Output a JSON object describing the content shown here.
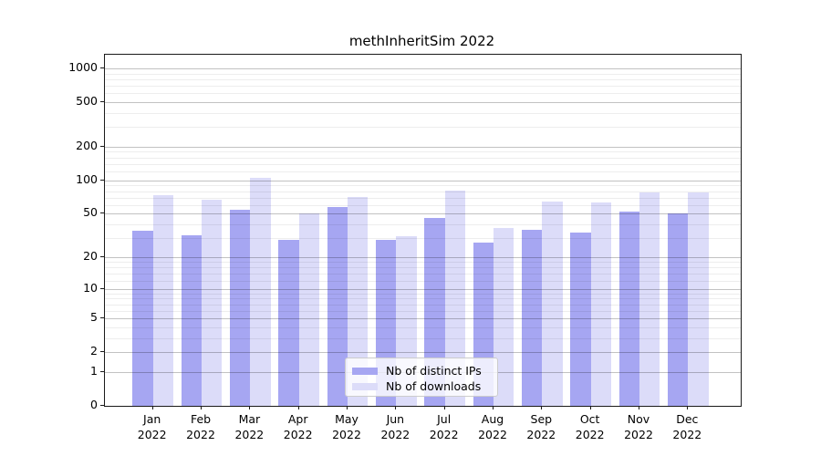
{
  "chart_data": {
    "type": "bar",
    "title": "methInheritSim 2022",
    "y_scale": "log1p",
    "ylim": [
      0,
      1320
    ],
    "grid": true,
    "legend_position": "lower center",
    "categories": [
      "Jan",
      "Feb",
      "Mar",
      "Apr",
      "May",
      "Jun",
      "Jul",
      "Aug",
      "Sep",
      "Oct",
      "Nov",
      "Dec"
    ],
    "x_year": "2022",
    "y_major_ticks": [
      0,
      1,
      2,
      5,
      10,
      20,
      50,
      100,
      200,
      500,
      1000
    ],
    "y_minor_ticks": [
      3,
      4,
      6,
      7,
      8,
      9,
      12,
      14,
      16,
      18,
      30,
      40,
      60,
      70,
      80,
      90,
      120,
      140,
      160,
      180,
      300,
      400,
      600,
      700,
      800,
      900
    ],
    "series": [
      {
        "name": "Nb of distinct IPs",
        "color": "#a6a6f2",
        "values": [
          35,
          32,
          54,
          29,
          57,
          29,
          46,
          27,
          36,
          34,
          52,
          50
        ]
      },
      {
        "name": "Nb of downloads",
        "color": "#dcdcf9",
        "values": [
          73,
          67,
          106,
          50,
          71,
          31,
          81,
          37,
          65,
          63,
          78,
          78
        ]
      }
    ]
  }
}
